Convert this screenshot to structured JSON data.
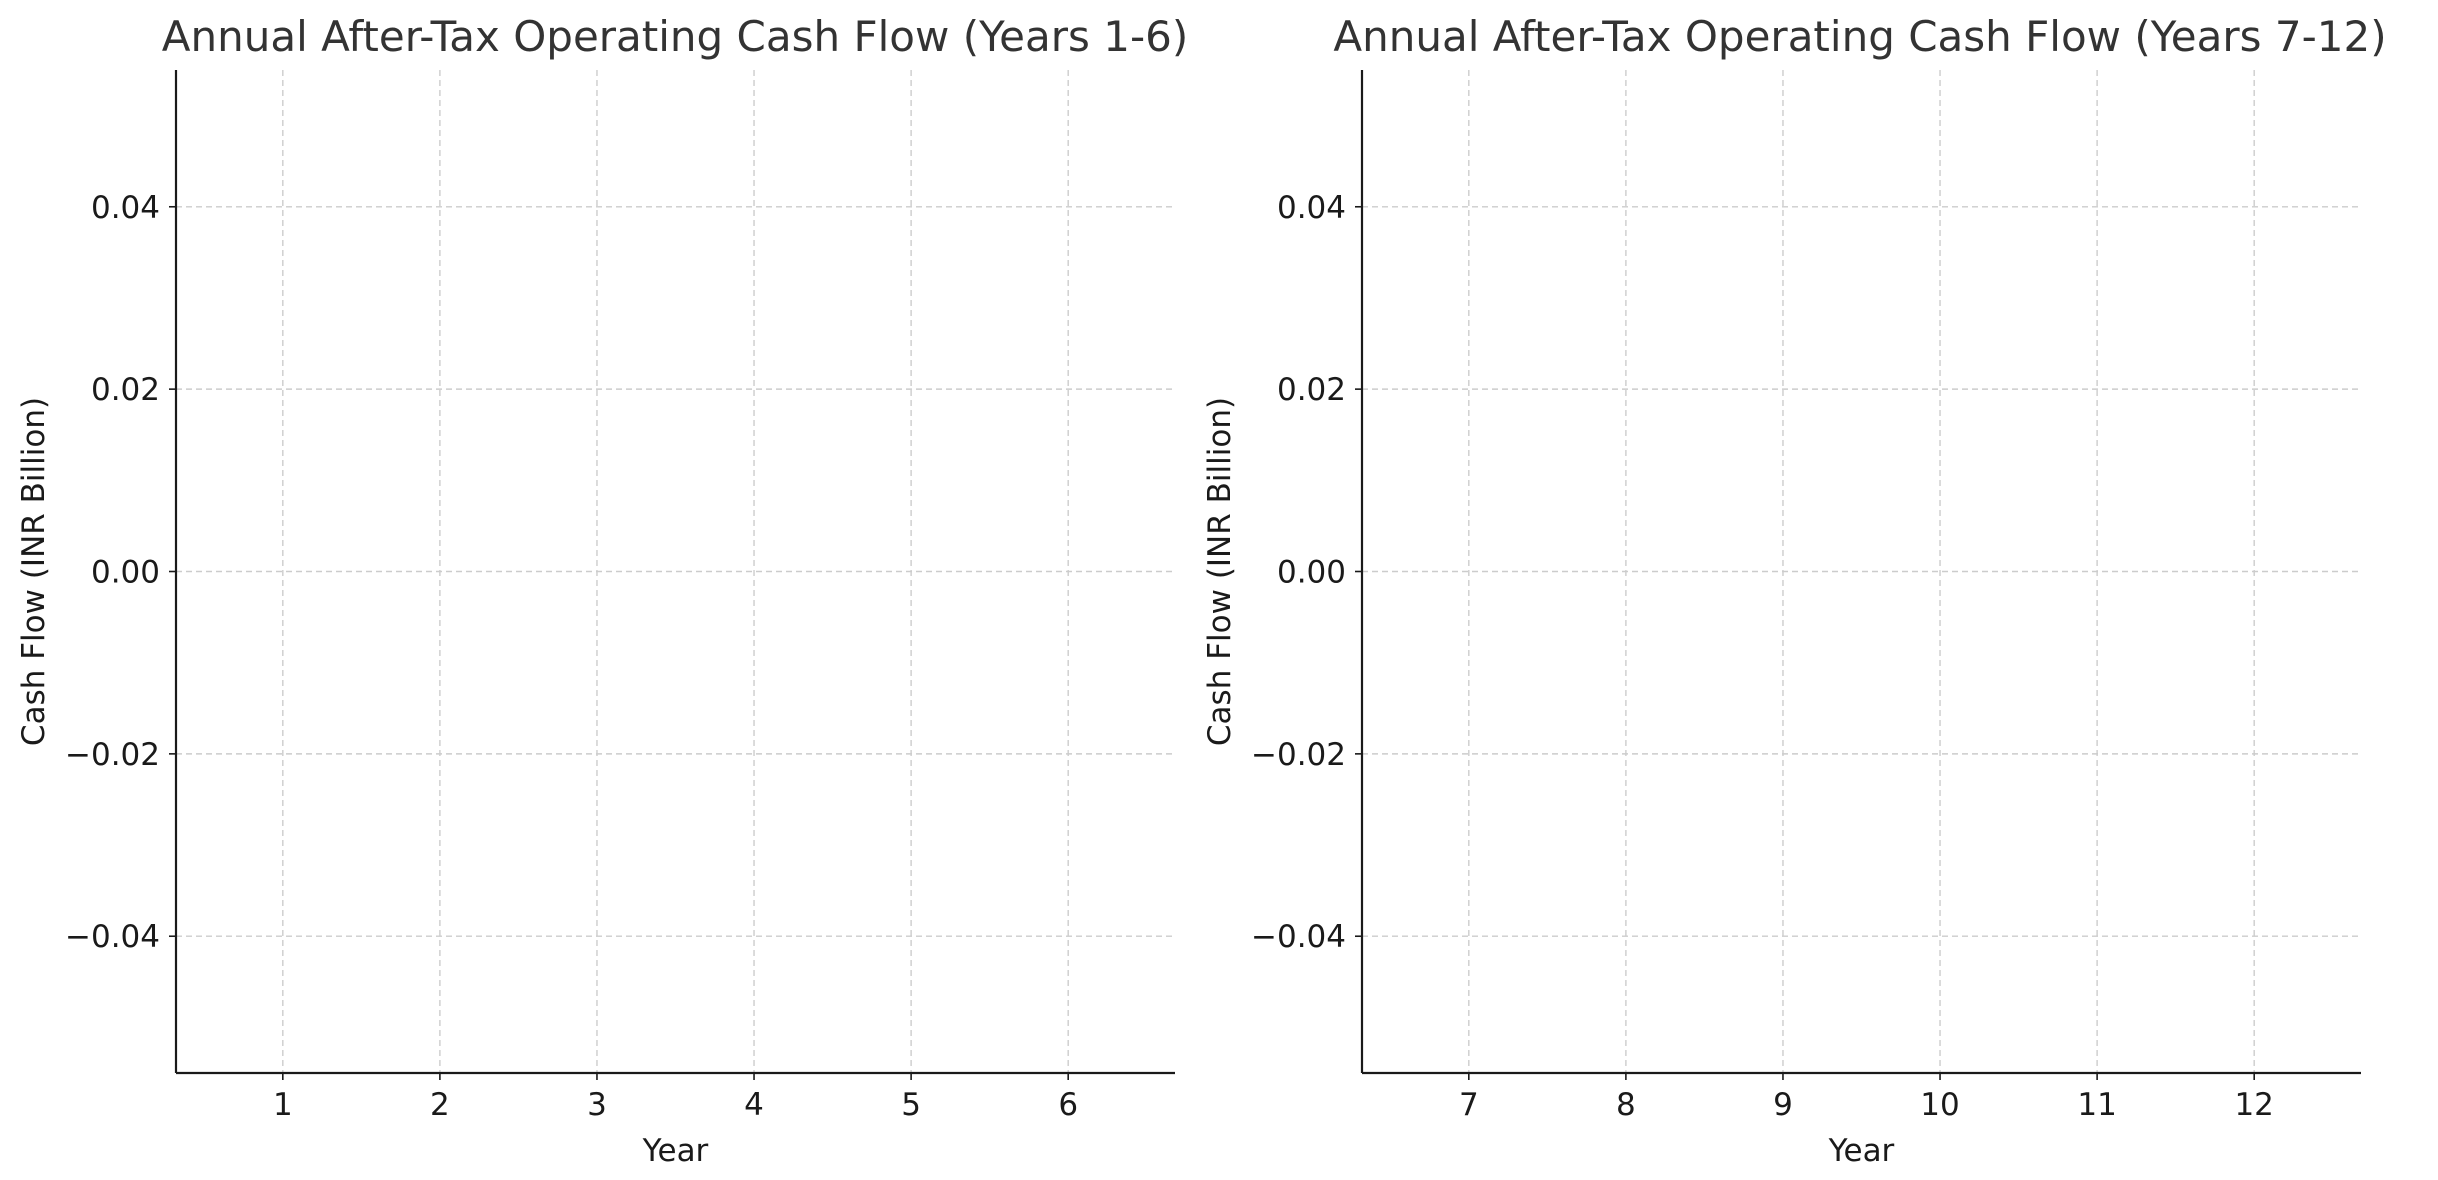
{
  "chart_data": [
    {
      "type": "line",
      "title": "Annual After-Tax Operating Cash Flow (Years 1-6)",
      "xlabel": "Year",
      "ylabel": "Cash Flow (INR Billion)",
      "x_ticks": [
        "1",
        "2",
        "3",
        "4",
        "5",
        "6"
      ],
      "x_tick_values": [
        1,
        2,
        3,
        4,
        5,
        6
      ],
      "xlim": [
        0.32,
        6.68
      ],
      "y_ticks": [
        "0.04",
        "0.02",
        "0.00",
        "−0.02",
        "−0.04"
      ],
      "y_tick_values": [
        0.04,
        0.02,
        0.0,
        -0.02,
        -0.04
      ],
      "ylim": [
        -0.055,
        0.055
      ],
      "grid": true,
      "grid_style": "dashed",
      "grid_color": "#cccccc",
      "series": []
    },
    {
      "type": "line",
      "title": "Annual After-Tax Operating Cash Flow (Years 7-12)",
      "xlabel": "Year",
      "ylabel": "Cash Flow (INR Billion)",
      "x_ticks": [
        "7",
        "8",
        "9",
        "10",
        "11",
        "12"
      ],
      "x_tick_values": [
        7,
        8,
        9,
        10,
        11,
        12
      ],
      "xlim": [
        6.32,
        12.68
      ],
      "y_ticks": [
        "0.04",
        "0.02",
        "0.00",
        "−0.02",
        "−0.04"
      ],
      "y_tick_values": [
        0.04,
        0.02,
        0.0,
        -0.02,
        -0.04
      ],
      "ylim": [
        -0.055,
        0.055
      ],
      "grid": true,
      "grid_style": "dashed",
      "grid_color": "#cccccc",
      "series": []
    }
  ]
}
